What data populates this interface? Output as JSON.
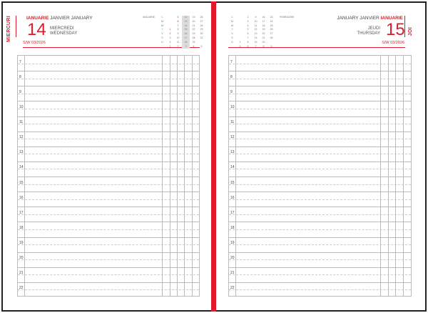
{
  "left": {
    "vertical_day": "MIERCURI",
    "month_ro": "IANUARIE",
    "month_other": "JANVIER JANUARY",
    "day": "14",
    "weekday_ro": "MIERCREDI",
    "weekday_en": "WEDNESDAY",
    "week": "S/W 03/2026",
    "calendar": {
      "title": "IANUARIE",
      "days": [
        "L",
        "M",
        "M",
        "J",
        "V",
        "S",
        "D"
      ],
      "weeks": [
        [
          "",
          "",
          "",
          "1",
          "2",
          "3",
          "4"
        ],
        [
          "5",
          "6",
          "7",
          "8",
          "9",
          "10",
          "11"
        ],
        [
          "12",
          "13",
          "14",
          "15",
          "16",
          "17",
          "18"
        ],
        [
          "19",
          "20",
          "21",
          "22",
          "23",
          "24",
          "25"
        ],
        [
          "26",
          "27",
          "28",
          "29",
          "30",
          "31",
          ""
        ]
      ],
      "week_numbers": [
        "1",
        "2",
        "3",
        "4",
        "5"
      ],
      "highlight_week": 2
    }
  },
  "right": {
    "vertical_day": "JOI",
    "month_ro": "IANUARIE",
    "month_other": "JANUARY JANVIER",
    "day": "15",
    "weekday_ro": "JEUDI",
    "weekday_en": "THURSDAY",
    "week": "S/W 03/2026",
    "calendar": {
      "title": "FEBRUARIE",
      "days": [
        "L",
        "M",
        "M",
        "J",
        "V",
        "S",
        "D"
      ],
      "weeks": [
        [
          "",
          "",
          "",
          "",
          "",
          "",
          "1"
        ],
        [
          "2",
          "3",
          "4",
          "5",
          "6",
          "7",
          "8"
        ],
        [
          "9",
          "10",
          "11",
          "12",
          "13",
          "14",
          "15"
        ],
        [
          "16",
          "17",
          "18",
          "19",
          "20",
          "21",
          "22"
        ],
        [
          "23",
          "24",
          "25",
          "26",
          "27",
          "28",
          ""
        ]
      ],
      "week_numbers": [
        "5",
        "6",
        "7",
        "8",
        "9"
      ]
    }
  },
  "hours": [
    "7",
    "8",
    "9",
    "10",
    "11",
    "12",
    "13",
    "14",
    "15",
    "16",
    "17",
    "18",
    "19",
    "20",
    "21",
    "22"
  ],
  "colors": {
    "accent": "#d6202e"
  }
}
